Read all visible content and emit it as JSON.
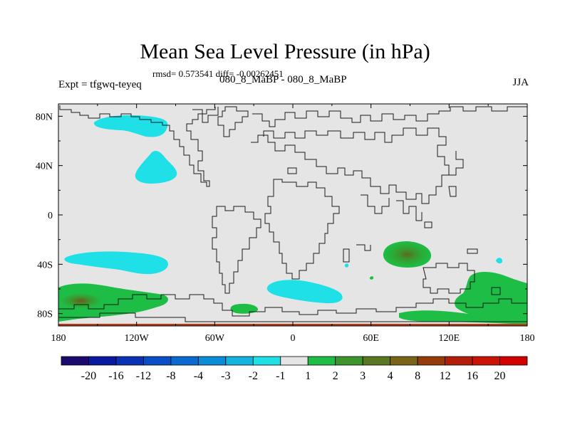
{
  "title": "Mean Sea Level Pressure (in hPa)",
  "stats": "rmsd= 0.573541 diff= -0.00262451",
  "experiment": "Expt = tfgwq-teyeq",
  "comparison": "080_8_MaBP - 080_8_MaBP",
  "season": "JJA",
  "map": {
    "lat_ticks": [
      "80N",
      "40N",
      "0",
      "40S",
      "80S"
    ],
    "lat_values": [
      80,
      40,
      0,
      -40,
      -80
    ],
    "lon_ticks": [
      "180",
      "120W",
      "60W",
      "0",
      "60E",
      "120E",
      "180"
    ],
    "lon_values": [
      -180,
      -120,
      -60,
      0,
      60,
      120,
      180
    ],
    "background_color": "#e5e5e5",
    "anomalies": [
      {
        "name": "north-pacific-low",
        "lon": -130,
        "lat": 65,
        "value": -1.5
      },
      {
        "name": "east-pacific-low",
        "lon": -105,
        "lat": 32,
        "value": -1.5
      },
      {
        "name": "south-pacific-low",
        "lon": -130,
        "lat": -40,
        "value": -1.5
      },
      {
        "name": "south-atlantic-low",
        "lon": 15,
        "lat": -61,
        "value": -1.5
      },
      {
        "name": "indian-ocean-high",
        "lon": 88,
        "lat": -34,
        "value": 4
      },
      {
        "name": "southern-ocean-high-west",
        "lon": -160,
        "lat": -68,
        "value": 3
      },
      {
        "name": "southern-ocean-high-east",
        "lon": 150,
        "lat": -64,
        "value": 2
      },
      {
        "name": "antarctic-high",
        "lon": 130,
        "lat": -80,
        "value": 2
      }
    ]
  },
  "colorbar": {
    "labels": [
      "-20",
      "-16",
      "-12",
      "-8",
      "-4",
      "-3",
      "-2",
      "-1",
      "1",
      "2",
      "3",
      "4",
      "8",
      "12",
      "16",
      "20"
    ],
    "colors": [
      "#1a0a6e",
      "#0a1aa0",
      "#0a32b4",
      "#0a4ec8",
      "#0a6ad2",
      "#0a8cd8",
      "#14b4e0",
      "#1ee0e6",
      "#e5e5e5",
      "#1ebe46",
      "#3c962d",
      "#5a7823",
      "#7a6418",
      "#963c0a",
      "#b41e08",
      "#cc1406",
      "#d20000"
    ]
  }
}
